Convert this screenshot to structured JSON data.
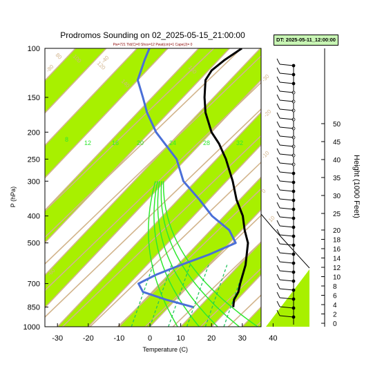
{
  "header": {
    "title": "Prodromos Sounding on 02_2025-05-15_21:00:00",
    "subtitle": "Pw=721 Tld(C)=0 Shox=12 Pwat(cm)=1 Cape(J)= 0",
    "dt_label": "DT: 2025-05-11_12:00:00"
  },
  "colors": {
    "band_green": "#a8f000",
    "isotherm": "#d2b48c",
    "mixing_ratio": "#22c55e",
    "moist_adiabat": "#2fe82f",
    "temperature": "#000000",
    "dewpoint": "#4a6fd8"
  },
  "chart_data": {
    "type": "skew-t",
    "xlabel": "Temperature (C)",
    "ylabel": "P (hPa)",
    "y2label": "Height (1000 Feet)",
    "x_ticks": [
      -30,
      -20,
      -10,
      0,
      10,
      20,
      30,
      40
    ],
    "p_ticks": [
      100,
      150,
      200,
      250,
      300,
      400,
      500,
      700,
      850,
      1000
    ],
    "height_ticks": [
      0,
      2,
      4,
      6,
      8,
      10,
      12,
      14,
      16,
      18,
      20,
      25,
      30,
      35,
      40,
      45,
      50
    ],
    "isotherm_labels": [
      {
        "t": -80,
        "label": "-80"
      },
      {
        "t": -60,
        "label": "-60"
      },
      {
        "t": -40,
        "label": "-40"
      },
      {
        "t": -30,
        "label": "-30"
      },
      {
        "t": -20,
        "label": "-20"
      },
      {
        "t": -10,
        "label": "-10"
      },
      {
        "t": 0,
        "label": "0"
      },
      {
        "t": 10,
        "label": "10"
      },
      {
        "t": 20,
        "label": "20"
      },
      {
        "t": 30,
        "label": "30"
      }
    ],
    "theta_labels": [
      "80",
      "100",
      "120",
      "140",
      "160"
    ],
    "moist_adiabat_labels": [
      "8",
      "12",
      "16",
      "20",
      "24",
      "28",
      "32"
    ],
    "temperature": [
      {
        "p": 850,
        "t": 21
      },
      {
        "p": 800,
        "t": 19
      },
      {
        "p": 750,
        "t": 18
      },
      {
        "p": 700,
        "t": 16
      },
      {
        "p": 600,
        "t": 12
      },
      {
        "p": 500,
        "t": 6
      },
      {
        "p": 450,
        "t": 1
      },
      {
        "p": 400,
        "t": -4
      },
      {
        "p": 350,
        "t": -11
      },
      {
        "p": 300,
        "t": -18
      },
      {
        "p": 250,
        "t": -27
      },
      {
        "p": 220,
        "t": -34
      },
      {
        "p": 200,
        "t": -40
      },
      {
        "p": 170,
        "t": -48
      },
      {
        "p": 150,
        "t": -53
      },
      {
        "p": 130,
        "t": -58
      },
      {
        "p": 120,
        "t": -59
      },
      {
        "p": 110,
        "t": -58
      },
      {
        "p": 100,
        "t": -56
      }
    ],
    "dewpoint": [
      {
        "p": 850,
        "t": 8
      },
      {
        "p": 800,
        "t": -3
      },
      {
        "p": 750,
        "t": -13
      },
      {
        "p": 700,
        "t": -17
      },
      {
        "p": 650,
        "t": -14
      },
      {
        "p": 600,
        "t": -9
      },
      {
        "p": 550,
        "t": -3
      },
      {
        "p": 500,
        "t": 2
      },
      {
        "p": 450,
        "t": -4
      },
      {
        "p": 400,
        "t": -14
      },
      {
        "p": 350,
        "t": -23
      },
      {
        "p": 300,
        "t": -34
      },
      {
        "p": 250,
        "t": -43
      },
      {
        "p": 200,
        "t": -58
      },
      {
        "p": 170,
        "t": -67
      },
      {
        "p": 150,
        "t": -73
      },
      {
        "p": 130,
        "t": -80
      },
      {
        "p": 110,
        "t": -84
      },
      {
        "p": 100,
        "t": -86
      }
    ]
  }
}
